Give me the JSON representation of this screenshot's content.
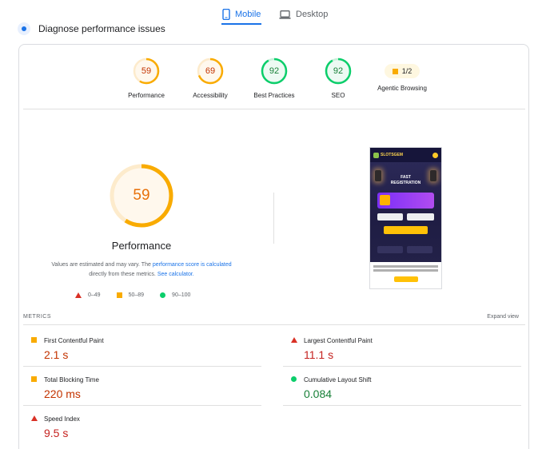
{
  "tabs": {
    "mobile": "Mobile",
    "desktop": "Desktop"
  },
  "header": {
    "title": "Diagnose performance issues"
  },
  "gauges": [
    {
      "label": "Performance",
      "score": "59",
      "fraction": 0.59,
      "color": "#f9ab00"
    },
    {
      "label": "Accessibility",
      "score": "69",
      "fraction": 0.69,
      "color": "#f9ab00"
    },
    {
      "label": "Best Practices",
      "score": "92",
      "fraction": 0.92,
      "color": "#0cce6b"
    },
    {
      "label": "SEO",
      "score": "92",
      "fraction": 0.92,
      "color": "#0cce6b"
    }
  ],
  "agentic": {
    "badge": "1/2",
    "label": "Agentic Browsing"
  },
  "performance": {
    "score": "59",
    "fraction": 0.59,
    "title": "Performance",
    "note_1": "Values are estimated and may vary. The ",
    "note_link_1": "performance score is calculated",
    "note_2": " directly from these metrics. ",
    "note_link_2": "See calculator.",
    "legend": [
      "0–49",
      "50–89",
      "90–100"
    ]
  },
  "phone": {
    "logo": "SLOTSGEM",
    "headline_1": "FAST",
    "headline_2": "REGISTRATION"
  },
  "metrics": {
    "label": "METRICS",
    "expand": "Expand view",
    "items": [
      {
        "name": "First Contentful Paint",
        "value": "2.1 s"
      },
      {
        "name": "Largest Contentful Paint",
        "value": "11.1 s"
      },
      {
        "name": "Total Blocking Time",
        "value": "220 ms"
      },
      {
        "name": "Cumulative Layout Shift",
        "value": "0.084"
      },
      {
        "name": "Speed Index",
        "value": "9.5 s"
      }
    ]
  }
}
